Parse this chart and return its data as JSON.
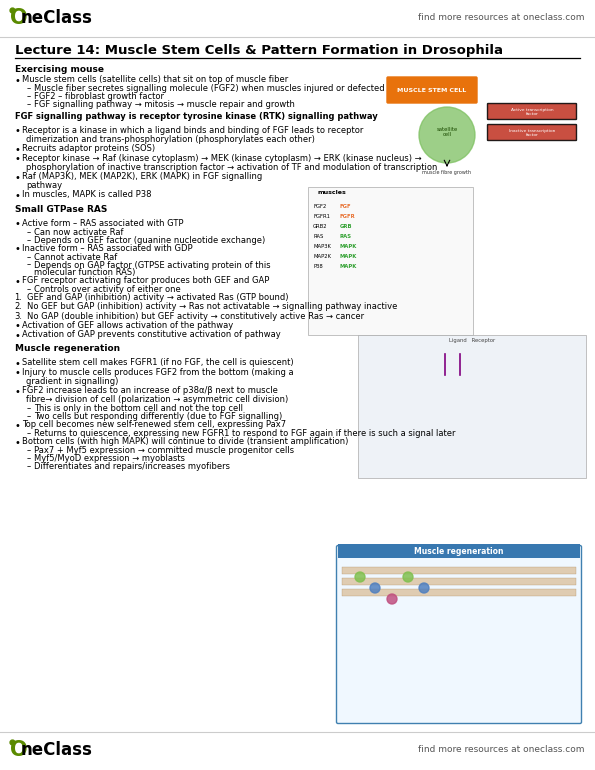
{
  "bg_color": "#ffffff",
  "oneclass_green": "#5a8a00",
  "header_find": "find more resources at oneclass.com",
  "orange_box": "#e8720c",
  "title_text": "Lecture 14: Muscle Stem Cells & Pattern Formation in Drosophila",
  "body_lines": [
    {
      "type": "section",
      "text": "Exercising mouse"
    },
    {
      "type": "bullet",
      "text": "Muscle stem cells (satellite cells) that sit on top of muscle fiber"
    },
    {
      "type": "sub",
      "text": "Muscle fiber secretes signalling molecule (FGF2) when muscles injured or defected"
    },
    {
      "type": "sub",
      "text": "FGF2 – fibroblast growth factor"
    },
    {
      "type": "sub",
      "text": "FGF signalling pathway → mitosis → muscle repair and growth"
    },
    {
      "type": "blank"
    },
    {
      "type": "bold_section",
      "text": "FGF signalling pathway is receptor tyrosine kinase (RTK) signalling pathway"
    },
    {
      "type": "blank"
    },
    {
      "type": "bullet",
      "text": "Receptor is a kinase in which a ligand binds and binding of FGF leads to receptor"
    },
    {
      "type": "bullet_cont",
      "text": "dimerization and trans-phosphorylation (phosphorylates each other)"
    },
    {
      "type": "bullet",
      "text": "Recruits adaptor proteins (SOS)"
    },
    {
      "type": "bullet",
      "text": "Receptor kinase → Raf (kinase cytoplasm) → MEK (kinase cytoplasm) → ERK (kinase nucleus) →"
    },
    {
      "type": "bullet_cont",
      "text": "phosphorylation of inactive transcription factor → activation of TF and modulation of transcription"
    },
    {
      "type": "bullet",
      "text": "Raf (MAP3K), MEK (MAP2K), ERK (MAPK) in FGF signalling"
    },
    {
      "type": "bullet_cont",
      "text": "pathway"
    },
    {
      "type": "bullet",
      "text": "In muscles, MAPK is called P38"
    },
    {
      "type": "blank"
    },
    {
      "type": "section",
      "text": "Small GTPase RAS"
    },
    {
      "type": "blank"
    },
    {
      "type": "bullet",
      "text": "Active form – RAS associated with GTP"
    },
    {
      "type": "sub",
      "text": "Can now activate Raf"
    },
    {
      "type": "sub",
      "text": "Depends on GEF factor (guanine nucleotide exchange)"
    },
    {
      "type": "bullet",
      "text": "Inactive form – RAS associated with GDP"
    },
    {
      "type": "sub",
      "text": "Cannot activate Raf"
    },
    {
      "type": "sub",
      "text": "Depends on GAP factor (GTPSE activating protein of this"
    },
    {
      "type": "sub_cont",
      "text": "molecular function RAS)"
    },
    {
      "type": "bullet",
      "text": "FGF receptor activating factor produces both GEF and GAP"
    },
    {
      "type": "sub",
      "text": "Controls over activity of either one"
    },
    {
      "type": "numbered",
      "num": "1.",
      "text": "GEF and GAP (inhibition) activity → activated Ras (GTP bound)"
    },
    {
      "type": "numbered",
      "num": "2.",
      "text": "No GEF but GAP (inhibition) activity → Ras not activatable → signalling pathway inactive"
    },
    {
      "type": "numbered",
      "num": "3.",
      "text": "No GAP (double inhibition) but GEF activity → constitutively active Ras → cancer"
    },
    {
      "type": "bullet",
      "text": "Activation of GEF allows activation of the pathway"
    },
    {
      "type": "bullet",
      "text": "Activation of GAP prevents constitutive activation of pathway"
    },
    {
      "type": "blank"
    },
    {
      "type": "section",
      "text": "Muscle regeneration"
    },
    {
      "type": "blank"
    },
    {
      "type": "bullet",
      "text": "Satellite stem cell makes FGFR1 (if no FGF, the cell is quiescent)"
    },
    {
      "type": "bullet",
      "text": "Injury to muscle cells produces FGF2 from the bottom (making a"
    },
    {
      "type": "bullet_cont",
      "text": "gradient in signalling)"
    },
    {
      "type": "bullet",
      "text": "FGF2 increase leads to an increase of p38α/β next to muscle"
    },
    {
      "type": "bullet_cont",
      "text": "fibre→ division of cell (polarization → asymmetric cell division)"
    },
    {
      "type": "sub",
      "text": "This is only in the bottom cell and not the top cell"
    },
    {
      "type": "sub",
      "text": "Two cells but responding differently (due to FGF signalling)"
    },
    {
      "type": "bullet",
      "text": "Top cell becomes new self-renewed stem cell, expressing Pax7"
    },
    {
      "type": "sub",
      "text": "Returns to quiescence, expressing new FGFR1 to respond to FGF again if there is such a signal later"
    },
    {
      "type": "bullet",
      "text": "Bottom cells (with high MAPK) will continue to divide (transient amplification)"
    },
    {
      "type": "sub",
      "text": "Pax7 + Myf5 expression → committed muscle progenitor cells"
    },
    {
      "type": "sub",
      "text": "Myf5/MyoD expression → myoblasts"
    },
    {
      "type": "sub",
      "text": "Differentiates and repairs/increases myofibers"
    }
  ]
}
